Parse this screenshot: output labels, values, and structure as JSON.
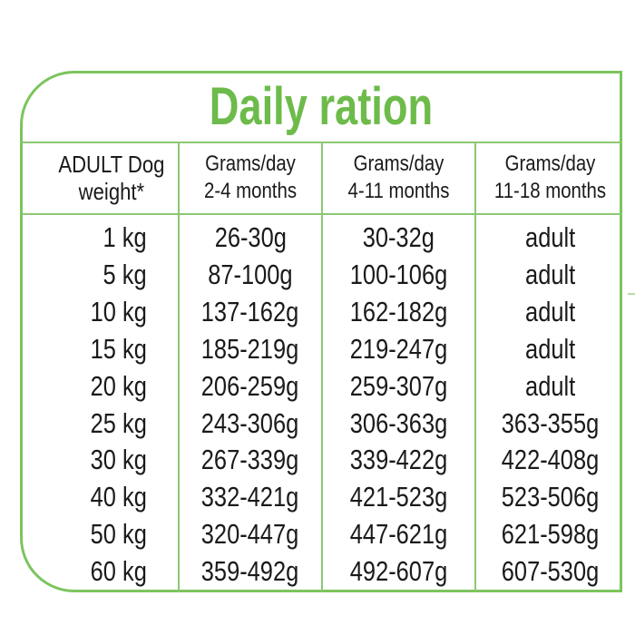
{
  "title": "Daily ration",
  "headers": [
    {
      "line1": "ADULT Dog",
      "line2": "weight*"
    },
    {
      "line1": "Grams/day",
      "line2": "2-4 months"
    },
    {
      "line1": "Grams/day",
      "line2": "4-11 months"
    },
    {
      "line1": "Grams/day",
      "line2": "11-18 months"
    }
  ],
  "rows": [
    [
      "1 kg",
      "26-30g",
      "30-32g",
      "adult"
    ],
    [
      "5 kg",
      "87-100g",
      "100-106g",
      "adult"
    ],
    [
      "10 kg",
      "137-162g",
      "162-182g",
      "adult"
    ],
    [
      "15 kg",
      "185-219g",
      "219-247g",
      "adult"
    ],
    [
      "20 kg",
      "206-259g",
      "259-307g",
      "adult"
    ],
    [
      "25 kg",
      "243-306g",
      "306-363g",
      "363-355g"
    ],
    [
      "30 kg",
      "267-339g",
      "339-422g",
      "422-408g"
    ],
    [
      "40 kg",
      "332-421g",
      "421-523g",
      "523-506g"
    ],
    [
      "50 kg",
      "320-447g",
      "447-621g",
      "621-598g"
    ],
    [
      "60 kg",
      "359-492g",
      "492-607g",
      "607-530g"
    ]
  ],
  "colors": {
    "accent": "#6dbb4a",
    "border": "#7cc45e"
  }
}
